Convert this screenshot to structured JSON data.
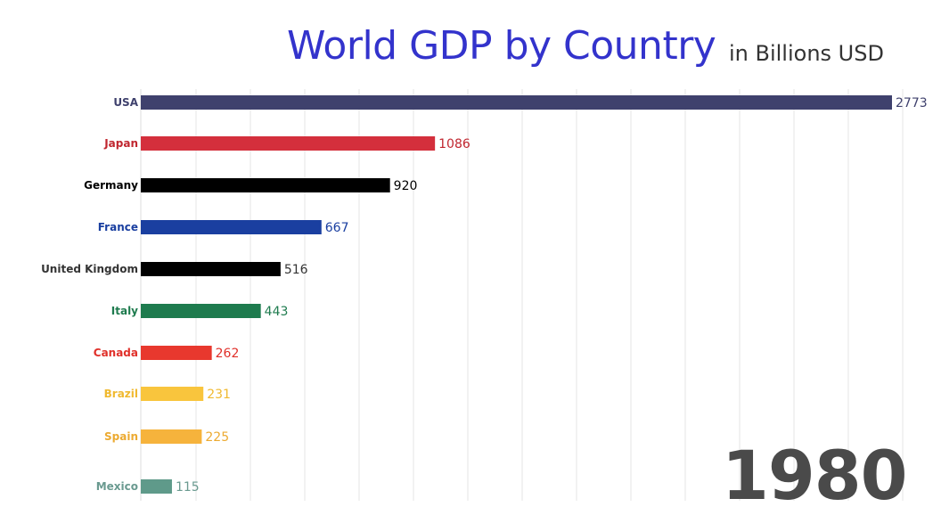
{
  "chart_data": {
    "type": "bar",
    "orientation": "horizontal",
    "title": "World GDP by Country",
    "subtitle": "in Billions USD",
    "year": "1980",
    "categories": [
      "USA",
      "Japan",
      "Germany",
      "France",
      "United Kingdom",
      "Italy",
      "Canada",
      "Brazil",
      "Spain",
      "Mexico"
    ],
    "values": [
      2773,
      1086,
      920,
      667,
      516,
      443,
      262,
      231,
      225,
      115
    ],
    "value_labels": [
      "2773",
      "1086",
      "920",
      "667",
      "516",
      "443",
      "262",
      "231",
      "225",
      "115"
    ],
    "colors": [
      "#3f416d",
      "#d42f3c",
      "#000000",
      "#1a3fa0",
      "#000000",
      "#1e7b4e",
      "#e8382e",
      "#f9c53d",
      "#f6b33c",
      "#5f9a8a"
    ],
    "label_colors": [
      "#3f416d",
      "#c0262f",
      "#000000",
      "#1a3fa0",
      "#333333",
      "#1e7b4e",
      "#e0302a",
      "#f0b92f",
      "#ecaa31",
      "#6a9a90"
    ],
    "xlim": [
      0,
      2773
    ],
    "grid": true,
    "legend": "none"
  }
}
